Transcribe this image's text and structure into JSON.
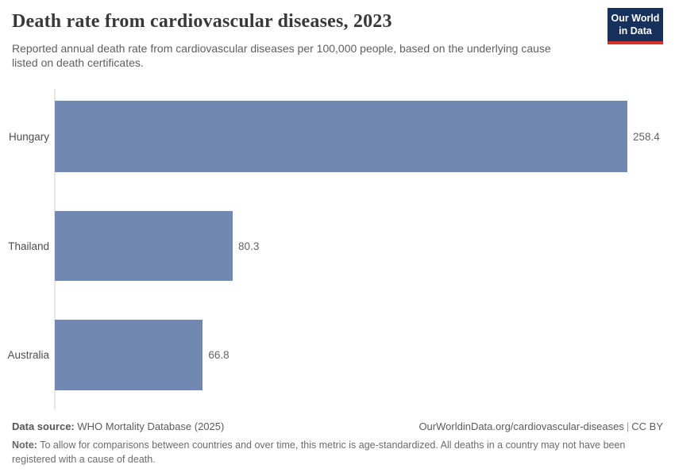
{
  "header": {
    "title": "Death rate from cardiovascular diseases, 2023",
    "subtitle": "Reported annual death rate from cardiovascular diseases per 100,000 people, based on the underlying cause listed on death certificates.",
    "logo": {
      "line1": "Our World",
      "line2": "in Data"
    }
  },
  "chart_data": {
    "type": "bar",
    "orientation": "horizontal",
    "title": "Death rate from cardiovascular diseases, 2023",
    "categories": [
      "Hungary",
      "Thailand",
      "Australia"
    ],
    "values": [
      258.4,
      80.3,
      66.8
    ],
    "value_labels": [
      "258.4",
      "80.3",
      "66.8"
    ],
    "xlabel": "",
    "ylabel": "",
    "xlim": [
      0,
      258.4
    ],
    "grid": false,
    "legend": "none",
    "bar_color": "#7189b2",
    "axis_color": "#e7e7e7"
  },
  "footer": {
    "data_source_label": "Data source:",
    "data_source_text": " WHO Mortality Database (2025)",
    "link": "OurWorldinData.org/cardiovascular-diseases",
    "separator": "|",
    "license": "CC BY",
    "note_label": "Note:",
    "note_text": " To allow for comparisons between countries and over time, this metric is age-standardized. All deaths in a country may not have been registered with a cause of death."
  },
  "colors": {
    "bar": "#7189b2",
    "logo_background": "#16325c",
    "logo_accent_red": "#d2352c",
    "title_text": "#383838",
    "axis_line": "#e7e7e7"
  }
}
